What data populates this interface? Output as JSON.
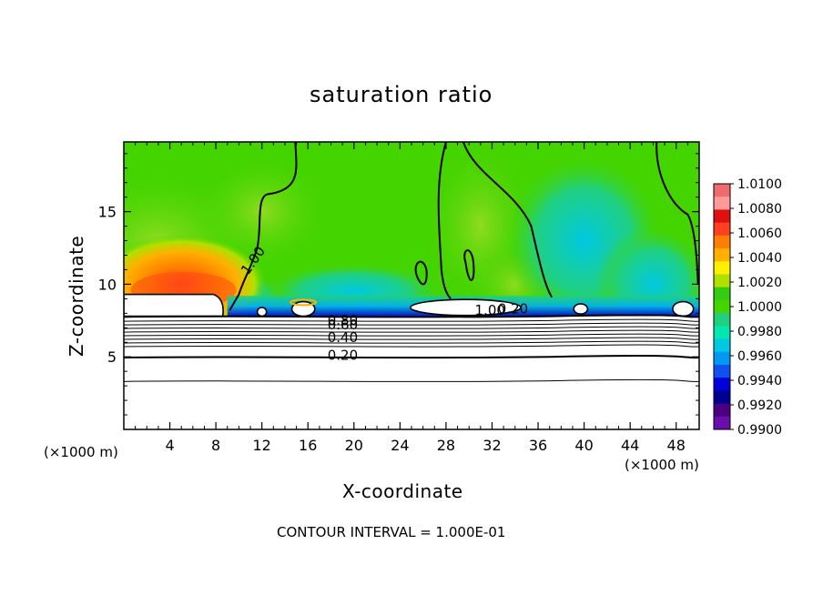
{
  "chart_data": {
    "type": "heatmap",
    "title": "saturation ratio",
    "xlabel": "X-coordinate",
    "ylabel": "Z-coordinate",
    "x_unit_label": "(×1000 m)",
    "x_unit_label_right": "(×1000 m)",
    "xlim": [
      0,
      50
    ],
    "ylim": [
      0,
      19.8
    ],
    "x_ticks": [
      4,
      8,
      12,
      16,
      20,
      24,
      28,
      32,
      36,
      40,
      44,
      48
    ],
    "y_ticks": [
      5,
      10,
      15
    ],
    "colorbar": {
      "labels": [
        "1.0100",
        "1.0080",
        "1.0060",
        "1.0040",
        "1.0020",
        "1.0000",
        "0.9980",
        "0.9960",
        "0.9940",
        "0.9920",
        "0.9900"
      ],
      "colors": [
        "#f06c6c",
        "#ff9a9a",
        "#e01010",
        "#ff4020",
        "#ff7e00",
        "#ffb000",
        "#fff000",
        "#b0e000",
        "#33cc10",
        "#44d400",
        "#20d080",
        "#00e8b0",
        "#00c8e0",
        "#0098f0",
        "#1050f0",
        "#0000d8",
        "#000090",
        "#4b0082",
        "#6a0dad"
      ],
      "min": 0.99,
      "max": 1.01
    },
    "contour_labels": [
      "1.00",
      "1.00",
      "0.20",
      "0.80",
      "0.60",
      "0.40",
      "0.20"
    ],
    "contour_interval_text": "CONTOUR INTERVAL = 1.000E-01",
    "background_color": "#44d400",
    "hotspot": {
      "x_center": 5,
      "z_center": 10,
      "value": 1.006
    },
    "dry_layer": {
      "z_top": 7.8,
      "contour_values": [
        0.2,
        0.3,
        0.4,
        0.5,
        0.6,
        0.7,
        0.8,
        0.9
      ]
    }
  }
}
